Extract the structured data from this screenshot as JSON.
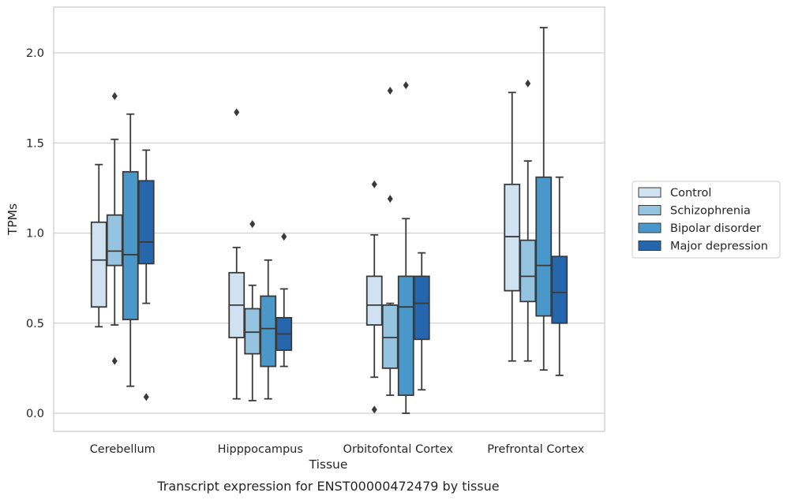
{
  "chart_data": {
    "type": "box",
    "caption": "Transcript expression for ENST00000472479 by tissue",
    "xlabel": "Tissue",
    "ylabel": "TPMs",
    "ylim": [
      -0.1,
      2.25
    ],
    "yticks": [
      0.0,
      0.5,
      1.0,
      1.5,
      2.0
    ],
    "ytick_labels": [
      "0.0",
      "0.5",
      "1.0",
      "1.5",
      "2.0"
    ],
    "grid": "horizontal",
    "legend_position": "right",
    "categories": [
      "Cerebellum",
      "Hipppocampus",
      "Orbitofontal Cortex",
      "Prefrontal Cortex"
    ],
    "series": [
      {
        "name": "Control",
        "color": "#d0e1f2",
        "boxes": [
          {
            "whislo": 0.48,
            "q1": 0.59,
            "med": 0.85,
            "q3": 1.06,
            "whishi": 1.38,
            "fliers": []
          },
          {
            "whislo": 0.08,
            "q1": 0.42,
            "med": 0.6,
            "q3": 0.78,
            "whishi": 0.92,
            "fliers": [
              1.67
            ]
          },
          {
            "whislo": 0.2,
            "q1": 0.49,
            "med": 0.6,
            "q3": 0.76,
            "whishi": 0.99,
            "fliers": [
              1.27,
              0.02
            ]
          },
          {
            "whislo": 0.29,
            "q1": 0.68,
            "med": 0.98,
            "q3": 1.27,
            "whishi": 1.78,
            "fliers": []
          }
        ]
      },
      {
        "name": "Schizophrenia",
        "color": "#94c4df",
        "boxes": [
          {
            "whislo": 0.49,
            "q1": 0.82,
            "med": 0.9,
            "q3": 1.1,
            "whishi": 1.52,
            "fliers": [
              1.76,
              0.29
            ]
          },
          {
            "whislo": 0.07,
            "q1": 0.33,
            "med": 0.45,
            "q3": 0.58,
            "whishi": 0.71,
            "fliers": [
              1.05
            ]
          },
          {
            "whislo": 0.1,
            "q1": 0.25,
            "med": 0.42,
            "q3": 0.6,
            "whishi": 0.61,
            "fliers": [
              1.79,
              1.19
            ]
          },
          {
            "whislo": 0.29,
            "q1": 0.62,
            "med": 0.76,
            "q3": 0.96,
            "whishi": 1.4,
            "fliers": [
              1.83
            ]
          }
        ]
      },
      {
        "name": "Bipolar disorder",
        "color": "#4a98c9",
        "boxes": [
          {
            "whislo": 0.15,
            "q1": 0.52,
            "med": 0.88,
            "q3": 1.34,
            "whishi": 1.66,
            "fliers": []
          },
          {
            "whislo": 0.08,
            "q1": 0.26,
            "med": 0.47,
            "q3": 0.65,
            "whishi": 0.85,
            "fliers": []
          },
          {
            "whislo": 0.0,
            "q1": 0.1,
            "med": 0.59,
            "q3": 0.76,
            "whishi": 1.08,
            "fliers": [
              1.82
            ]
          },
          {
            "whislo": 0.24,
            "q1": 0.54,
            "med": 0.82,
            "q3": 1.31,
            "whishi": 2.14,
            "fliers": []
          }
        ]
      },
      {
        "name": "Major depression",
        "color": "#2566ac",
        "boxes": [
          {
            "whislo": 0.61,
            "q1": 0.83,
            "med": 0.95,
            "q3": 1.29,
            "whishi": 1.46,
            "fliers": [
              0.09
            ]
          },
          {
            "whislo": 0.26,
            "q1": 0.35,
            "med": 0.44,
            "q3": 0.53,
            "whishi": 0.69,
            "fliers": [
              0.98
            ]
          },
          {
            "whislo": 0.13,
            "q1": 0.41,
            "med": 0.61,
            "q3": 0.76,
            "whishi": 0.89,
            "fliers": []
          },
          {
            "whislo": 0.21,
            "q1": 0.5,
            "med": 0.67,
            "q3": 0.87,
            "whishi": 1.31,
            "fliers": []
          }
        ]
      }
    ]
  }
}
